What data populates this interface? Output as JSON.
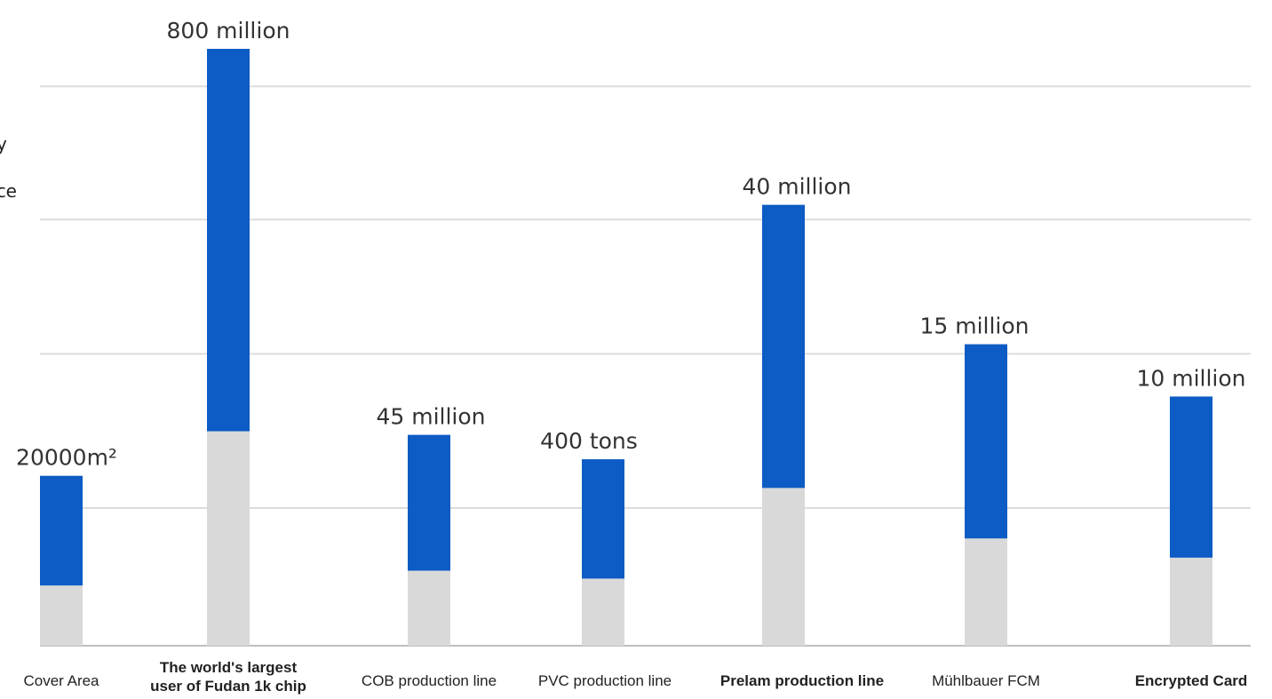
{
  "chart_data": {
    "type": "bar",
    "categories": [
      {
        "lines": [
          "Cover Area"
        ],
        "bold": false
      },
      {
        "lines": [
          "The world's largest",
          "user of Fudan 1k chip"
        ],
        "bold": true
      },
      {
        "lines": [
          "COB production line"
        ],
        "bold": false
      },
      {
        "lines": [
          "PVC production line"
        ],
        "bold": false
      },
      {
        "lines": [
          "Prelam production line"
        ],
        "bold": true
      },
      {
        "lines": [
          "Mühlbauer FCM"
        ],
        "bold": false
      },
      {
        "lines": [
          "Encrypted Card"
        ],
        "bold": true
      }
    ],
    "value_labels": [
      "20000m²",
      "800 million",
      "45 million",
      "400 tons",
      "40 million",
      "15 million",
      "10 million"
    ],
    "bar_top": [
      195,
      685,
      242,
      214,
      506,
      346,
      286
    ],
    "gray_top": [
      69,
      246,
      86,
      77,
      181,
      123,
      101
    ],
    "ylim": [
      0,
      700
    ],
    "gridlines": [
      158,
      335,
      489,
      642
    ],
    "colors": {
      "bar": "#0d5bc4",
      "base": "#d9d9d9",
      "grid": "#dcdcdc",
      "axis": "#bfbfbf",
      "text": "#333333",
      "category_text": "#222222"
    }
  },
  "left_text": {
    "line1": "y",
    "line2": "ce"
  }
}
